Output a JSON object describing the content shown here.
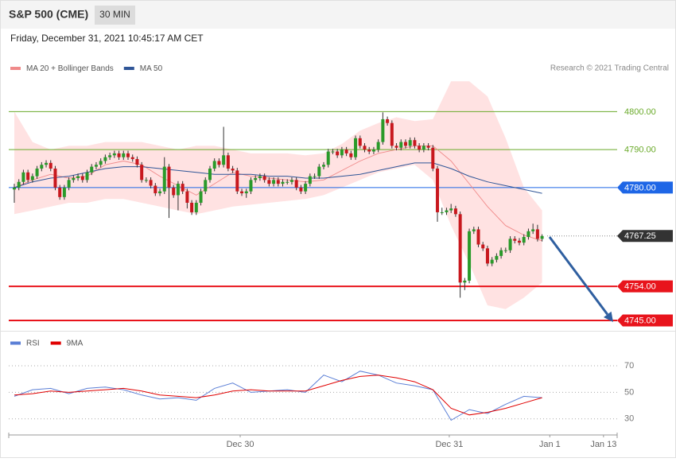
{
  "header": {
    "symbol": "S&P 500 (CME)",
    "interval": "30 MIN",
    "timestamp": "Friday, December 31, 2021 10:45:17 AM CET"
  },
  "source": "Research © 2021 Trading Central",
  "chart_data": [
    {
      "type": "candlestick",
      "xlim": [
        -1.22,
        132.5
      ],
      "ylim": [
        4742.5,
        4809.5
      ],
      "up_color": "#2a9a2a",
      "down_color": "#c8181e",
      "ohlc": [
        [
          4779.5,
          4781,
          4776,
          4780
        ],
        [
          4780,
          4782.2,
          4779.3,
          4781.5
        ],
        [
          4781.5,
          4784.7,
          4780.8,
          4784
        ],
        [
          4784,
          4784.7,
          4781.3,
          4782
        ],
        [
          4782,
          4783.7,
          4781.3,
          4783
        ],
        [
          4783,
          4785.7,
          4782.3,
          4785
        ],
        [
          4785,
          4786.7,
          4784.3,
          4786
        ],
        [
          4786,
          4787.2,
          4785.3,
          4786.5
        ],
        [
          4786.5,
          4787.2,
          4784.3,
          4785
        ],
        [
          4785,
          4785.7,
          4779.3,
          4780
        ],
        [
          4780,
          4780.7,
          4776.8,
          4777.5
        ],
        [
          4777.5,
          4780.7,
          4776.8,
          4780
        ],
        [
          4780,
          4782.7,
          4779.3,
          4782
        ],
        [
          4782,
          4783.2,
          4781.3,
          4782.5
        ],
        [
          4782.5,
          4783.7,
          4781.8,
          4783
        ],
        [
          4783,
          4783.7,
          4781.3,
          4782
        ],
        [
          4782,
          4784.7,
          4781.3,
          4784
        ],
        [
          4784,
          4786.2,
          4783.3,
          4785.5
        ],
        [
          4785.5,
          4786.7,
          4784.8,
          4786
        ],
        [
          4786,
          4787.7,
          4785.3,
          4787
        ],
        [
          4787,
          4788.7,
          4786.3,
          4788
        ],
        [
          4788,
          4789.2,
          4787.3,
          4788.5
        ],
        [
          4788.5,
          4789.7,
          4787.8,
          4789
        ],
        [
          4789,
          4789.7,
          4787.3,
          4788
        ],
        [
          4788,
          4789.7,
          4787.3,
          4789
        ],
        [
          4789,
          4789.7,
          4787.3,
          4788
        ],
        [
          4788,
          4788.7,
          4786.8,
          4787.5
        ],
        [
          4787.5,
          4788.2,
          4785.3,
          4786
        ],
        [
          4786,
          4786.7,
          4781.3,
          4782
        ],
        [
          4782,
          4782.7,
          4781.3,
          4782
        ],
        [
          4782,
          4782.7,
          4779.8,
          4780.5
        ],
        [
          4780.5,
          4781.2,
          4777.8,
          4778.5
        ],
        [
          4778.5,
          4779.7,
          4777.8,
          4779
        ],
        [
          4779,
          4788,
          4778.3,
          4785.5
        ],
        [
          4785.5,
          4786.2,
          4772,
          4780
        ],
        [
          4780,
          4780.7,
          4777.3,
          4778
        ],
        [
          4778,
          4781.7,
          4774,
          4781
        ],
        [
          4781,
          4781.7,
          4778.3,
          4779
        ],
        [
          4779,
          4779.7,
          4774.5,
          4776
        ],
        [
          4776,
          4776.7,
          4772.8,
          4773.5
        ],
        [
          4773.5,
          4776.7,
          4772.8,
          4776
        ],
        [
          4776,
          4779.7,
          4775.3,
          4779
        ],
        [
          4779,
          4782.7,
          4778.3,
          4782
        ],
        [
          4782,
          4785.7,
          4781.3,
          4785
        ],
        [
          4785,
          4787.7,
          4784.3,
          4787
        ],
        [
          4787,
          4787.7,
          4785.3,
          4786
        ],
        [
          4786,
          4796,
          4785.3,
          4788.5
        ],
        [
          4788.5,
          4789.2,
          4784.3,
          4785
        ],
        [
          4785,
          4785.7,
          4783.8,
          4784.5
        ],
        [
          4784.5,
          4785.2,
          4778.3,
          4779
        ],
        [
          4779,
          4779.7,
          4777.8,
          4778.5
        ],
        [
          4778.5,
          4779.7,
          4777.3,
          4779
        ],
        [
          4779,
          4782.7,
          4778.3,
          4782
        ],
        [
          4782,
          4783.2,
          4781.3,
          4782.5
        ],
        [
          4782.5,
          4783.7,
          4781.8,
          4783
        ],
        [
          4783,
          4783.7,
          4781.3,
          4782
        ],
        [
          4782,
          4782.7,
          4780.3,
          4781
        ],
        [
          4781,
          4782.7,
          4780.3,
          4782
        ],
        [
          4782,
          4782.7,
          4780.3,
          4781
        ],
        [
          4781,
          4782.2,
          4780.3,
          4781.5
        ],
        [
          4781.5,
          4782.2,
          4780.8,
          4781.5
        ],
        [
          4781.5,
          4782.7,
          4780.8,
          4782
        ],
        [
          4782,
          4782.7,
          4779.3,
          4780
        ],
        [
          4780,
          4780.7,
          4778.3,
          4779
        ],
        [
          4779,
          4781.7,
          4778.3,
          4781
        ],
        [
          4781,
          4783.7,
          4780.3,
          4783
        ],
        [
          4783,
          4783.7,
          4782.3,
          4783
        ],
        [
          4783,
          4786.2,
          4782.3,
          4785.5
        ],
        [
          4785.5,
          4786.7,
          4784.8,
          4786
        ],
        [
          4786,
          4790.2,
          4785.3,
          4789.5
        ],
        [
          4789.5,
          4790.2,
          4788.8,
          4789.5
        ],
        [
          4789.5,
          4790.2,
          4787.8,
          4788.5
        ],
        [
          4788.5,
          4790.7,
          4787.8,
          4790
        ],
        [
          4790,
          4790.7,
          4788.3,
          4789
        ],
        [
          4789,
          4789.7,
          4787.3,
          4788
        ],
        [
          4788,
          4793.7,
          4787.3,
          4793
        ],
        [
          4793,
          4793.7,
          4790.3,
          4791
        ],
        [
          4791,
          4791.7,
          4789.3,
          4790
        ],
        [
          4790,
          4790.7,
          4788.8,
          4789.5
        ],
        [
          4789.5,
          4790.7,
          4788.8,
          4790
        ],
        [
          4790,
          4792.7,
          4789.3,
          4792
        ],
        [
          4792,
          4799.8,
          4791.3,
          4798
        ],
        [
          4798,
          4798.7,
          4796.3,
          4797
        ],
        [
          4797,
          4797.7,
          4790.3,
          4791
        ],
        [
          4791,
          4791.7,
          4789.8,
          4790.5
        ],
        [
          4790.5,
          4792.7,
          4789.8,
          4792
        ],
        [
          4792,
          4792.7,
          4790.3,
          4791
        ],
        [
          4791,
          4793.2,
          4790.3,
          4792.5
        ],
        [
          4792.5,
          4793.2,
          4790.3,
          4791
        ],
        [
          4791,
          4791.7,
          4789.3,
          4790
        ],
        [
          4790,
          4791.7,
          4789.3,
          4791
        ],
        [
          4791,
          4791.7,
          4789.8,
          4790.5
        ],
        [
          4790.5,
          4791.2,
          4784.3,
          4785
        ],
        [
          4785,
          4785.7,
          4771,
          4773.5
        ],
        [
          4773.5,
          4774.7,
          4772.8,
          4773.5
        ],
        [
          4773.5,
          4774.7,
          4772.8,
          4774
        ],
        [
          4774,
          4775.7,
          4773.3,
          4774.5
        ],
        [
          4774.5,
          4775.2,
          4772.3,
          4773
        ],
        [
          4773,
          4773.7,
          4751,
          4755
        ],
        [
          4755,
          4756.2,
          4753,
          4755.5
        ],
        [
          4755.5,
          4769.2,
          4754.8,
          4768.5
        ],
        [
          4768.5,
          4769.7,
          4767.8,
          4769
        ],
        [
          4769,
          4769.7,
          4764.3,
          4765
        ],
        [
          4765,
          4765.7,
          4763.3,
          4764
        ],
        [
          4764,
          4764.7,
          4759.3,
          4760
        ],
        [
          4760,
          4761.7,
          4759.3,
          4761
        ],
        [
          4761,
          4762.7,
          4760.3,
          4762
        ],
        [
          4762,
          4764.2,
          4761.3,
          4763.5
        ],
        [
          4763.5,
          4764.2,
          4762.8,
          4763.5
        ],
        [
          4763.5,
          4767.2,
          4762.8,
          4766.5
        ],
        [
          4766.5,
          4767.2,
          4765.3,
          4766
        ],
        [
          4766,
          4766.7,
          4764.8,
          4765.5
        ],
        [
          4765.5,
          4767.7,
          4764.8,
          4767
        ],
        [
          4767,
          4769.2,
          4766.3,
          4768.5
        ],
        [
          4768.5,
          4770.5,
          4767.8,
          4769
        ],
        [
          4769,
          4770.2,
          4765.8,
          4766.5
        ],
        [
          4766.5,
          4767.7,
          4765.8,
          4767.25
        ]
      ],
      "line_x": [
        0,
        4,
        8,
        12,
        16,
        20,
        24,
        28,
        32,
        36,
        40,
        44,
        48,
        52,
        56,
        60,
        64,
        68,
        72,
        76,
        80,
        84,
        88,
        92,
        96,
        100,
        104,
        108,
        112,
        116
      ],
      "bands": {
        "color": "#ffe2e2",
        "upper": [
          4800,
          4792,
          4790,
          4791,
          4791,
          4792,
          4792,
          4792,
          4791,
          4790,
          4791,
          4791,
          4790,
          4789,
          4789,
          4789,
          4788.5,
          4789,
          4791.5,
          4795,
          4797,
          4798.5,
          4797.5,
          4798,
          4808,
          4808,
          4804,
          4793,
          4780,
          4774
        ],
        "lower": [
          4773,
          4774,
          4775,
          4776,
          4776,
          4777,
          4777,
          4776,
          4775,
          4774,
          4773,
          4774,
          4775,
          4775.5,
          4776,
          4776.5,
          4777,
          4778,
          4780,
          4782,
          4784,
          4785,
          4786,
          4782,
          4770,
          4760,
          4749,
          4748,
          4751,
          4755
        ]
      },
      "series": [
        {
          "name": "MA 20 + Bollinger Bands",
          "color": "#f08a8a",
          "values": [
            4780,
            4782,
            4783.5,
            4782.5,
            4783,
            4786,
            4787,
            4786,
            4783,
            4780.5,
            4778,
            4781,
            4784,
            4783,
            4782.5,
            4782,
            4781.5,
            4782,
            4784.5,
            4787,
            4789,
            4790,
            4791,
            4791,
            4787,
            4781,
            4775,
            4770,
            4767.5,
            4766
          ]
        },
        {
          "name": "MA 50",
          "color": "#2f5597",
          "values": [
            4780,
            4781.5,
            4782.5,
            4783,
            4784,
            4785,
            4785.5,
            4785.5,
            4785,
            4784.5,
            4784,
            4783.5,
            4783.5,
            4783.5,
            4783,
            4783,
            4782.5,
            4782.5,
            4783,
            4783.5,
            4784.5,
            4785.5,
            4786.5,
            4786.5,
            4785,
            4783,
            4781.5,
            4780.5,
            4779.5,
            4778.5
          ]
        }
      ],
      "levels": [
        {
          "value": 4800,
          "label": "4800.00",
          "color": "#6aaa2a",
          "line": "thin",
          "box": false
        },
        {
          "value": 4790,
          "label": "4790.00",
          "color": "#6aaa2a",
          "line": "thin",
          "box": false
        },
        {
          "value": 4780,
          "label": "4780.00",
          "color": "#1e66e6",
          "line": "thin",
          "box": true
        },
        {
          "value": 4767.25,
          "label": "4767.25",
          "color": "#333333",
          "line": "dotted",
          "box": true
        },
        {
          "value": 4754,
          "label": "4754.00",
          "color": "#e8141c",
          "line": "thick",
          "box": true
        },
        {
          "value": 4745,
          "label": "4745.00",
          "color": "#e8141c",
          "line": "thick",
          "box": true
        }
      ]
    },
    {
      "type": "line",
      "xlim": [
        -1.22,
        132.5
      ],
      "ylim": [
        21.5,
        79
      ],
      "yticks": [
        70,
        50,
        30
      ],
      "grid": true,
      "xticks": [
        {
          "value": 49.65,
          "label": "Dec 30"
        },
        {
          "value": 95.6,
          "label": "Dec 31"
        },
        {
          "value": 117.7,
          "label": "Jan 1"
        },
        {
          "value": 129.5,
          "label": "Jan 13"
        }
      ],
      "x": [
        0,
        4,
        8,
        12,
        16,
        20,
        24,
        28,
        32,
        36,
        40,
        44,
        48,
        52,
        56,
        60,
        64,
        68,
        72,
        76,
        80,
        84,
        88,
        92,
        96,
        100,
        104,
        108,
        112,
        116
      ],
      "series": [
        {
          "name": "RSI",
          "color": "#5b7fd6",
          "values": [
            47,
            52,
            53,
            49,
            53,
            54,
            52,
            48,
            45,
            46,
            44,
            53,
            57,
            50,
            51,
            52,
            50,
            63,
            58,
            66,
            63,
            57,
            55,
            52,
            29,
            37,
            34,
            41,
            47,
            46
          ]
        },
        {
          "name": "9MA",
          "color": "#e00000",
          "values": [
            48,
            49,
            51,
            50,
            51,
            52,
            53,
            51,
            48,
            47,
            46,
            48,
            51,
            52,
            51,
            51,
            51,
            55,
            59,
            62,
            63,
            61,
            58,
            52,
            38,
            33,
            35,
            38,
            42,
            46
          ]
        }
      ]
    }
  ]
}
